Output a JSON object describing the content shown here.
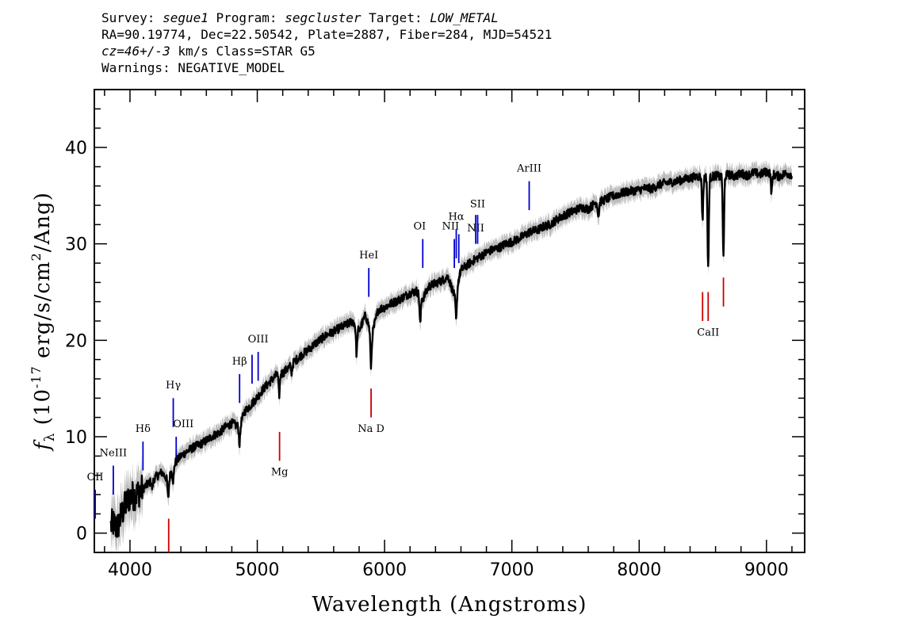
{
  "header": {
    "survey_label": "Survey: ",
    "survey": "segue1",
    "program_label": " Program: ",
    "program": "segcluster",
    "target_label": " Target: ",
    "target": "LOW_METAL",
    "line2": "RA=90.19774, Dec=22.50542, Plate=2887, Fiber=284, MJD=54521",
    "cz": "cz=46+/-3",
    "cz_unit": " km/s Class=STAR G5",
    "warnings": "Warnings: NEGATIVE_MODEL"
  },
  "chart_data": {
    "type": "line",
    "xlabel": "Wavelength (Angstroms)",
    "ylabel": "f_λ (10^-17 erg/s/cm^2/Ang)",
    "xlim": [
      3720,
      9300
    ],
    "ylim": [
      -2,
      46
    ],
    "xticks": [
      4000,
      5000,
      6000,
      7000,
      8000,
      9000
    ],
    "yticks": [
      0,
      10,
      20,
      30,
      40
    ],
    "colors": {
      "flux": "#000000",
      "error": "#bdbdbd",
      "emission": "#0000cc",
      "absorption": "#cc0000"
    },
    "series": [
      {
        "name": "flux",
        "x": [
          3850,
          3870,
          3900,
          3930,
          3960,
          4000,
          4050,
          4100,
          4150,
          4200,
          4250,
          4300,
          4350,
          4400,
          4450,
          4500,
          4550,
          4600,
          4650,
          4700,
          4750,
          4800,
          4860,
          4900,
          4950,
          5000,
          5050,
          5100,
          5150,
          5200,
          5250,
          5300,
          5350,
          5400,
          5450,
          5500,
          5550,
          5600,
          5650,
          5700,
          5750,
          5800,
          5850,
          5900,
          5950,
          6000,
          6050,
          6100,
          6150,
          6200,
          6250,
          6300,
          6350,
          6400,
          6450,
          6500,
          6550,
          6600,
          6650,
          6700,
          6750,
          6800,
          6850,
          6900,
          6950,
          7000,
          7050,
          7100,
          7150,
          7200,
          7250,
          7300,
          7350,
          7400,
          7450,
          7500,
          7550,
          7600,
          7650,
          7700,
          7750,
          7800,
          7850,
          7900,
          7950,
          8000,
          8050,
          8100,
          8150,
          8200,
          8250,
          8300,
          8350,
          8400,
          8450,
          8500,
          8550,
          8600,
          8650,
          8700,
          8750,
          8800,
          8850,
          8900,
          8950,
          9000,
          9050,
          9100,
          9150,
          9200
        ],
        "y": [
          0.8,
          1.0,
          0.5,
          1.8,
          2.8,
          3.8,
          4.0,
          4.6,
          5.2,
          5.8,
          6.3,
          5.5,
          7.2,
          8.0,
          8.5,
          8.9,
          9.2,
          9.6,
          10.1,
          10.4,
          11.0,
          11.4,
          11.0,
          12.6,
          13.3,
          14.1,
          15.0,
          15.7,
          16.4,
          16.6,
          17.2,
          17.9,
          18.5,
          19.0,
          19.6,
          20.1,
          20.6,
          20.9,
          21.3,
          21.6,
          22.0,
          21.0,
          22.6,
          20.5,
          23.2,
          23.4,
          23.8,
          24.1,
          24.5,
          24.9,
          25.1,
          24.3,
          25.6,
          25.9,
          26.2,
          26.6,
          24.5,
          27.3,
          27.8,
          28.3,
          28.7,
          29.1,
          29.4,
          29.6,
          30.0,
          30.2,
          30.5,
          30.9,
          31.3,
          31.4,
          31.8,
          32.0,
          32.5,
          32.9,
          33.2,
          33.5,
          33.8,
          33.6,
          34.2,
          34.4,
          34.7,
          35.0,
          35.2,
          35.4,
          35.5,
          35.6,
          35.8,
          35.7,
          36.1,
          36.3,
          36.4,
          36.5,
          36.7,
          36.8,
          37.0,
          37.0,
          36.8,
          37.1,
          36.9,
          37.2,
          37.0,
          37.3,
          37.1,
          37.4,
          37.2,
          37.5,
          37.2,
          37.0,
          37.3,
          37.2
        ]
      }
    ],
    "absorption_features": [
      {
        "wave": 4175,
        "depth": 0.8
      },
      {
        "wave": 4300,
        "depth": 2.0
      },
      {
        "wave": 4340,
        "depth": 1.4
      },
      {
        "wave": 4861,
        "depth": 1.8
      },
      {
        "wave": 5172,
        "depth": 2.2
      },
      {
        "wave": 5270,
        "depth": 0.8
      },
      {
        "wave": 5780,
        "depth": 2.8
      },
      {
        "wave": 5893,
        "depth": 3.5
      },
      {
        "wave": 6280,
        "depth": 3.0
      },
      {
        "wave": 6563,
        "depth": 3.2
      },
      {
        "wave": 7680,
        "depth": 1.5
      },
      {
        "wave": 8498,
        "depth": 4.5
      },
      {
        "wave": 8542,
        "depth": 9.5
      },
      {
        "wave": 8662,
        "depth": 8.5
      },
      {
        "wave": 9040,
        "depth": 2.0
      }
    ],
    "line_markers": [
      {
        "label": "OII",
        "wave": 3727,
        "y0": 1.5,
        "y1": 4.5,
        "color": "emission",
        "label_y": 5.5,
        "anchor": "middle",
        "offset": 0
      },
      {
        "label": "NeIII",
        "wave": 3869,
        "y0": 4.0,
        "y1": 7.0,
        "color": "emission",
        "label_y": 8.0,
        "anchor": "middle",
        "offset": 0
      },
      {
        "label": "Hδ",
        "wave": 4102,
        "y0": 6.5,
        "y1": 9.5,
        "color": "emission",
        "label_y": 10.5,
        "anchor": "middle",
        "offset": 0
      },
      {
        "label": "Hγ",
        "wave": 4340,
        "y0": 11.0,
        "y1": 14.0,
        "color": "emission",
        "label_y": 15.0,
        "anchor": "middle",
        "offset": 0
      },
      {
        "label": "OIII",
        "wave": 4363,
        "y0": 7.0,
        "y1": 10.0,
        "color": "emission",
        "label_y": 11.0,
        "anchor": "start",
        "offset": -4
      },
      {
        "label": "Hβ",
        "wave": 4861,
        "y0": 13.5,
        "y1": 16.5,
        "color": "emission",
        "label_y": 17.5,
        "anchor": "middle",
        "offset": 0
      },
      {
        "label": "",
        "wave": 4959,
        "y0": 15.5,
        "y1": 18.5,
        "color": "emission",
        "label_y": 0,
        "anchor": "middle",
        "offset": 0
      },
      {
        "label": "OIII",
        "wave": 5007,
        "y0": 15.8,
        "y1": 18.8,
        "color": "emission",
        "label_y": 19.8,
        "anchor": "middle",
        "offset": 0
      },
      {
        "label": "HeI",
        "wave": 5876,
        "y0": 24.5,
        "y1": 27.5,
        "color": "emission",
        "label_y": 28.5,
        "anchor": "middle",
        "offset": 0
      },
      {
        "label": "OI",
        "wave": 6300,
        "y0": 27.5,
        "y1": 30.5,
        "color": "emission",
        "label_y": 31.5,
        "anchor": "end",
        "offset": 4
      },
      {
        "label": "NII",
        "wave": 6548,
        "y0": 27.5,
        "y1": 30.5,
        "color": "emission",
        "label_y": 31.5,
        "anchor": "end",
        "offset": 6
      },
      {
        "label": "Hα",
        "wave": 6563,
        "y0": 28.5,
        "y1": 31.5,
        "color": "emission",
        "label_y": 32.5,
        "anchor": "middle",
        "offset": 0
      },
      {
        "label": "",
        "wave": 6583,
        "y0": 28.0,
        "y1": 31.0,
        "color": "emission",
        "label_y": 0,
        "anchor": "middle",
        "offset": 0
      },
      {
        "label": "NII",
        "wave": 6716,
        "y0": 30.0,
        "y1": 33.0,
        "color": "emission",
        "label_y": 31.3,
        "anchor": "middle",
        "offset": 0
      },
      {
        "label": "SII",
        "wave": 6731,
        "y0": 30.0,
        "y1": 33.0,
        "color": "emission",
        "label_y": 33.8,
        "anchor": "middle",
        "offset": 0
      },
      {
        "label": "ArIII",
        "wave": 7136,
        "y0": 33.5,
        "y1": 36.5,
        "color": "emission",
        "label_y": 37.5,
        "anchor": "middle",
        "offset": 0
      },
      {
        "label": "",
        "wave": 4304,
        "y0": -2,
        "y1": 1.5,
        "color": "absorption",
        "label_y": 0,
        "anchor": "middle",
        "offset": 0
      },
      {
        "label": "Mg",
        "wave": 5175,
        "y0": 7.5,
        "y1": 10.5,
        "color": "absorption",
        "label_y": 6.0,
        "anchor": "middle",
        "offset": 0
      },
      {
        "label": "Na D",
        "wave": 5894,
        "y0": 12.0,
        "y1": 15.0,
        "color": "absorption",
        "label_y": 10.5,
        "anchor": "middle",
        "offset": 0
      },
      {
        "label": "",
        "wave": 8498,
        "y0": 22.0,
        "y1": 25.0,
        "color": "absorption",
        "label_y": 0,
        "anchor": "middle",
        "offset": 0
      },
      {
        "label": "CaII",
        "wave": 8542,
        "y0": 22.0,
        "y1": 25.0,
        "color": "absorption",
        "label_y": 20.5,
        "anchor": "middle",
        "offset": 0
      },
      {
        "label": "",
        "wave": 8662,
        "y0": 23.5,
        "y1": 26.5,
        "color": "absorption",
        "label_y": 0,
        "anchor": "middle",
        "offset": 0
      }
    ]
  }
}
